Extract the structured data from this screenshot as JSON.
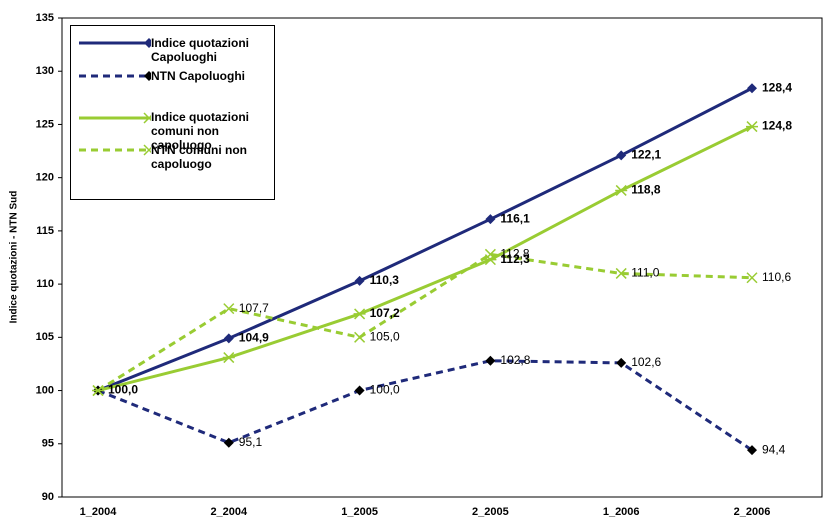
{
  "chart_data": {
    "type": "line",
    "y_label": "Indice quotazioni - NTN Sud",
    "categories": [
      "1_2004",
      "2_2004",
      "1_2005",
      "2_2005",
      "1_2006",
      "2_2006"
    ],
    "ylim": [
      90,
      135
    ],
    "yticks": [
      90,
      95,
      100,
      105,
      110,
      115,
      120,
      125,
      130,
      135
    ],
    "legend": "top-left",
    "series": [
      {
        "name": "Indice quotazioni Capoluoghi",
        "color": "#1f2a7a",
        "dashed": false,
        "marker": "diamond",
        "marker_color": "#1f2a7a",
        "bold_labels": true,
        "values": [
          100.0,
          104.9,
          110.3,
          116.1,
          122.1,
          128.4
        ],
        "value_labels": [
          "100,0",
          "104,9",
          "110,3",
          "116,1",
          "122,1",
          "128,4"
        ]
      },
      {
        "name": "NTN Capoluoghi",
        "color": "#1f2a7a",
        "dashed": true,
        "marker": "diamond",
        "marker_color": "#000000",
        "bold_labels": false,
        "values": [
          100.0,
          95.1,
          100.0,
          102.8,
          102.6,
          94.4
        ],
        "value_labels": [
          null,
          "95,1",
          "100,0",
          "102,8",
          "102,6",
          "94,4"
        ]
      },
      {
        "name": "Indice quotazioni comuni non capoluogo",
        "color": "#99cc33",
        "dashed": false,
        "marker": "star",
        "marker_color": "#99cc33",
        "bold_labels": true,
        "values": [
          100.0,
          103.1,
          107.2,
          112.3,
          118.8,
          124.8
        ],
        "value_labels": [
          null,
          null,
          "107,2",
          "112,3",
          "118,8",
          "124,8"
        ]
      },
      {
        "name": "NTN comuni non capoluogo",
        "color": "#99cc33",
        "dashed": true,
        "marker": "x",
        "marker_color": "#99cc33",
        "bold_labels": false,
        "values": [
          100.0,
          107.7,
          105.0,
          112.8,
          111.0,
          110.6
        ],
        "value_labels": [
          null,
          "107,7",
          "105,0",
          "112,8",
          "111,0",
          "110,6"
        ]
      }
    ]
  }
}
